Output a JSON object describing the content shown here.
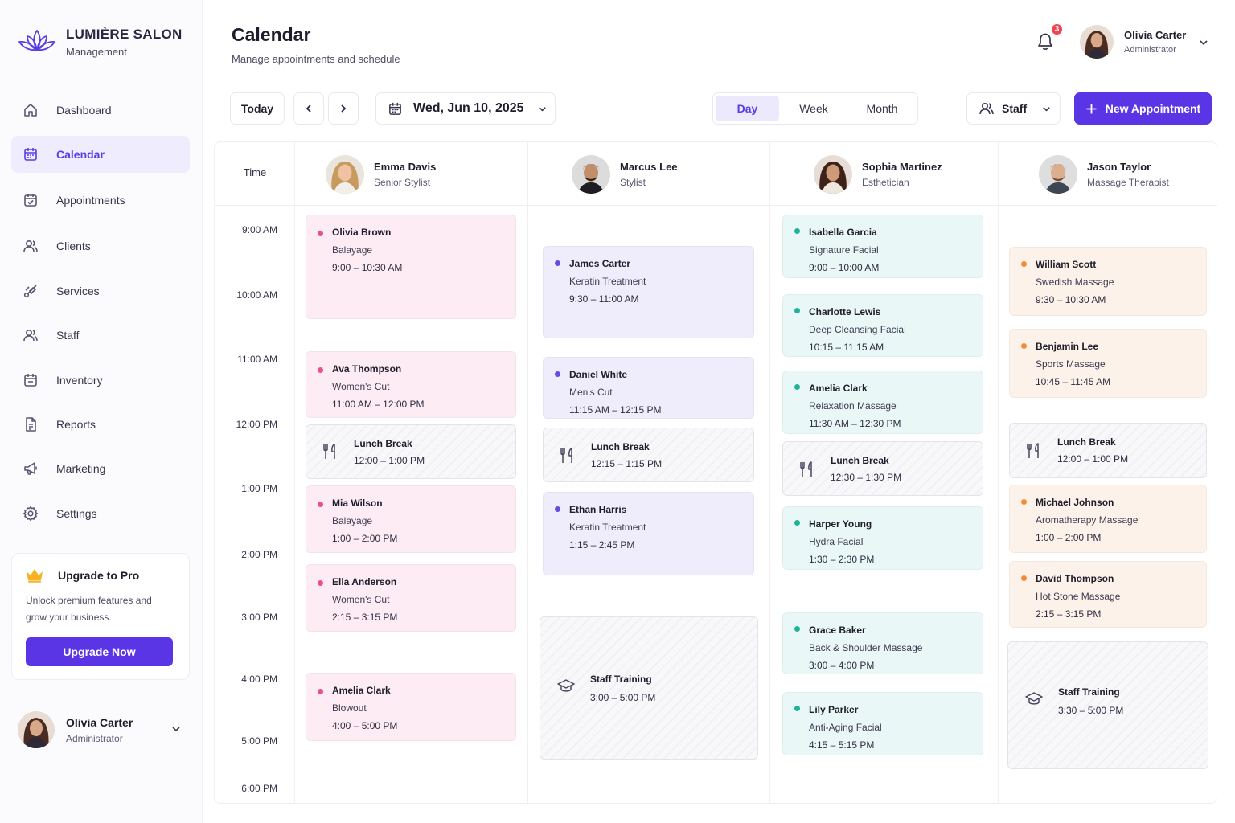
{
  "brand": {
    "name": "LUMIÈRE SALON",
    "subtitle": "Management"
  },
  "nav": [
    {
      "label": "Dashboard",
      "icon": "home-icon"
    },
    {
      "label": "Calendar",
      "icon": "calendar-icon",
      "active": true
    },
    {
      "label": "Appointments",
      "icon": "calendar-check-icon"
    },
    {
      "label": "Clients",
      "icon": "users-icon"
    },
    {
      "label": "Services",
      "icon": "scissors-icon"
    },
    {
      "label": "Staff",
      "icon": "staff-icon"
    },
    {
      "label": "Inventory",
      "icon": "box-icon"
    },
    {
      "label": "Reports",
      "icon": "report-icon"
    },
    {
      "label": "Marketing",
      "icon": "megaphone-icon"
    },
    {
      "label": "Settings",
      "icon": "gear-icon"
    }
  ],
  "upgrade": {
    "title": "Upgrade to Pro",
    "text": "Unlock premium features and grow your business.",
    "button": "Upgrade Now"
  },
  "user": {
    "name": "Olivia Carter",
    "role": "Administrator"
  },
  "header": {
    "title": "Calendar",
    "subtitle": "Manage appointments and schedule",
    "notification_count": "3"
  },
  "toolbar": {
    "today": "Today",
    "date": "Wed, Jun 10, 2025",
    "views": [
      "Day",
      "Week",
      "Month"
    ],
    "active_view": "Day",
    "staff_filter": "Staff",
    "new_appointment": "New Appointment"
  },
  "colors": {
    "accent": "#5a35e6",
    "pink": "#ec4f8b",
    "purple": "#6a4ae3",
    "teal": "#1cb39b",
    "orange": "#f28b3a",
    "badge": "#ef4452"
  },
  "calendar": {
    "time_header": "Time",
    "times": [
      "9:00 AM",
      "10:00 AM",
      "11:00 AM",
      "12:00 PM",
      "1:00 PM",
      "2:00 PM",
      "3:00 PM",
      "4:00 PM",
      "5:00 PM",
      "6:00 PM"
    ],
    "staff": [
      {
        "name": "Emma Davis",
        "role": "Senior Stylist",
        "color": "pink",
        "items": [
          {
            "kind": "appt",
            "client": "Olivia Brown",
            "service": "Balayage",
            "time": "9:00 – 10:30 AM"
          },
          {
            "kind": "appt",
            "client": "Ava Thompson",
            "service": "Women's Cut",
            "time": "11:00 AM – 12:00 PM"
          },
          {
            "kind": "break",
            "title": "Lunch Break",
            "time": "12:00 – 1:00 PM"
          },
          {
            "kind": "appt",
            "client": "Mia Wilson",
            "service": "Balayage",
            "time": "1:00 – 2:00 PM"
          },
          {
            "kind": "appt",
            "client": "Ella Anderson",
            "service": "Women's Cut",
            "time": "2:15 – 3:15 PM"
          },
          {
            "kind": "appt",
            "client": "Amelia Clark",
            "service": "Blowout",
            "time": "4:00 – 5:00 PM"
          }
        ]
      },
      {
        "name": "Marcus Lee",
        "role": "Stylist",
        "color": "lav",
        "items": [
          {
            "kind": "appt",
            "client": "James Carter",
            "service": "Keratin Treatment",
            "time": "9:30 – 11:00 AM"
          },
          {
            "kind": "appt",
            "client": "Daniel White",
            "service": "Men's Cut",
            "time": "11:15 AM – 12:15 PM"
          },
          {
            "kind": "break",
            "title": "Lunch Break",
            "time": "12:15 – 1:15 PM"
          },
          {
            "kind": "appt",
            "client": "Ethan Harris",
            "service": "Keratin Treatment",
            "time": "1:15 – 2:45 PM"
          },
          {
            "kind": "training",
            "title": "Staff Training",
            "time": "3:00 – 5:00 PM"
          }
        ]
      },
      {
        "name": "Sophia Martinez",
        "role": "Esthetician",
        "color": "mint",
        "items": [
          {
            "kind": "appt",
            "client": "Isabella Garcia",
            "service": "Signature Facial",
            "time": "9:00 – 10:00 AM"
          },
          {
            "kind": "appt",
            "client": "Charlotte Lewis",
            "service": "Deep Cleansing Facial",
            "time": "10:15 – 11:15 AM"
          },
          {
            "kind": "appt",
            "client": "Amelia Clark",
            "service": "Relaxation Massage",
            "time": "11:30 AM – 12:30 PM"
          },
          {
            "kind": "break",
            "title": "Lunch Break",
            "time": "12:30 – 1:30 PM"
          },
          {
            "kind": "appt",
            "client": "Harper Young",
            "service": "Hydra Facial",
            "time": "1:30 – 2:30 PM"
          },
          {
            "kind": "appt",
            "client": "Grace Baker",
            "service": "Back & Shoulder Massage",
            "time": "3:00 – 4:00 PM"
          },
          {
            "kind": "appt",
            "client": "Lily Parker",
            "service": "Anti-Aging Facial",
            "time": "4:15 – 5:15 PM"
          }
        ]
      },
      {
        "name": "Jason Taylor",
        "role": "Massage Therapist",
        "color": "peach",
        "items": [
          {
            "kind": "appt",
            "client": "William Scott",
            "service": "Swedish Massage",
            "time": "9:30 – 10:30 AM"
          },
          {
            "kind": "appt",
            "client": "Benjamin Lee",
            "service": "Sports Massage",
            "time": "10:45 – 11:45 AM"
          },
          {
            "kind": "break",
            "title": "Lunch Break",
            "time": "12:00 – 1:00 PM"
          },
          {
            "kind": "appt",
            "client": "Michael Johnson",
            "service": "Aromatherapy Massage",
            "time": "1:00 – 2:00 PM"
          },
          {
            "kind": "appt",
            "client": "David Thompson",
            "service": "Hot Stone Massage",
            "time": "2:15 – 3:15 PM"
          },
          {
            "kind": "training",
            "title": "Staff Training",
            "time": "3:30 – 5:00 PM"
          }
        ]
      }
    ]
  }
}
